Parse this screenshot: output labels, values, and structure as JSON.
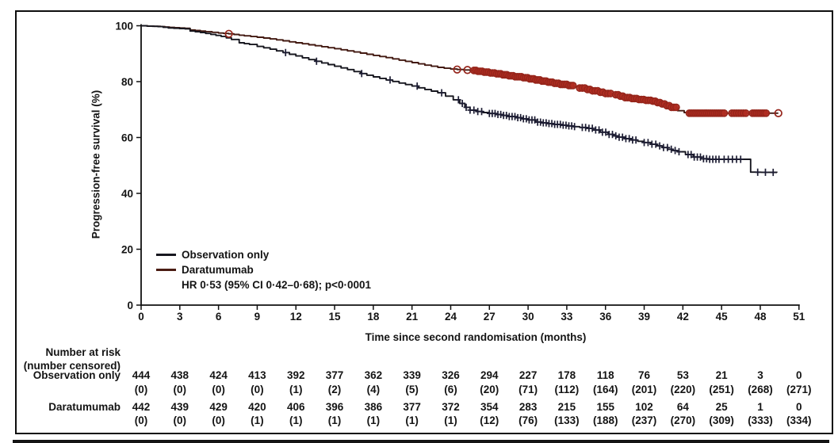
{
  "figure": {
    "background": "#ffffff",
    "border_color": "#0d0d0d",
    "text_color": "#141414"
  },
  "chart_data": {
    "type": "line",
    "subtype": "kaplan-meier-step",
    "title": "",
    "xlabel": "Time since second randomisation (months)",
    "ylabel": "Progression-free survival (%)",
    "xlim": [
      0,
      51
    ],
    "ylim": [
      0,
      100
    ],
    "x_ticks": [
      0,
      3,
      6,
      9,
      12,
      15,
      18,
      21,
      24,
      27,
      30,
      33,
      36,
      39,
      42,
      45,
      48,
      51
    ],
    "y_ticks": [
      0,
      20,
      40,
      60,
      80,
      100
    ],
    "grid": false,
    "legend": {
      "position": "lower-left-inside",
      "entries": [
        {
          "label": "Observation only",
          "color": "#17171f"
        },
        {
          "label": "Daratumumab",
          "color": "#4a1c13"
        }
      ],
      "annotation": "HR 0·53 (95% CI 0·42–0·68); p<0·0001"
    },
    "series": [
      {
        "name": "Daratumumab",
        "line_color": "#431a12",
        "marker": "circle",
        "marker_stroke": "#96251b",
        "marker_fill": "#b02c21",
        "points": [
          [
            0,
            100
          ],
          [
            1.5,
            99.7
          ],
          [
            2.2,
            99.4
          ],
          [
            3.4,
            99.1
          ],
          [
            3.8,
            98.5
          ],
          [
            5,
            97.9
          ],
          [
            6,
            97.4
          ],
          [
            6.8,
            97.1
          ],
          [
            8,
            96.4
          ],
          [
            9,
            95.9
          ],
          [
            10,
            95.3
          ],
          [
            11,
            94.6
          ],
          [
            12,
            93.9
          ],
          [
            13,
            93.2
          ],
          [
            14,
            92.5
          ],
          [
            15,
            91.8
          ],
          [
            16,
            91.0
          ],
          [
            17,
            90.2
          ],
          [
            18,
            89.4
          ],
          [
            19,
            88.6
          ],
          [
            20,
            87.7
          ],
          [
            21,
            86.8
          ],
          [
            22,
            85.9
          ],
          [
            23,
            85.1
          ],
          [
            24,
            84.5
          ],
          [
            25.5,
            84.0
          ],
          [
            26.5,
            83.4
          ],
          [
            27.5,
            82.8
          ],
          [
            28.5,
            82.1
          ],
          [
            29.5,
            81.4
          ],
          [
            30.5,
            80.6
          ],
          [
            31.5,
            79.8
          ],
          [
            32.5,
            79.0
          ],
          [
            33.5,
            78.2
          ],
          [
            34.5,
            77.2
          ],
          [
            35.5,
            76.2
          ],
          [
            36.5,
            75.3
          ],
          [
            37.5,
            74.3
          ],
          [
            38.5,
            73.6
          ],
          [
            39.5,
            73.0
          ],
          [
            40.3,
            72.0
          ],
          [
            41.0,
            70.8
          ],
          [
            41.6,
            69.6
          ],
          [
            42.1,
            68.9
          ],
          [
            42.4,
            68.7
          ],
          [
            49.4,
            68.7
          ]
        ],
        "censor_singles": [
          6.8,
          24.5,
          25.3,
          49.4
        ],
        "censor_clusters": [
          [
            25.8,
            33.6,
            0.16
          ],
          [
            34.0,
            36.4,
            0.2
          ],
          [
            36.8,
            41.6,
            0.18
          ],
          [
            42.5,
            45.2,
            0.15
          ],
          [
            45.8,
            47.0,
            0.18
          ],
          [
            47.4,
            48.5,
            0.15
          ]
        ]
      },
      {
        "name": "Observation only",
        "line_color": "#17171f",
        "marker": "plus",
        "marker_stroke": "#1d1d33",
        "points": [
          [
            0,
            100
          ],
          [
            1.3,
            99.7
          ],
          [
            2.1,
            99.2
          ],
          [
            3.4,
            98.9
          ],
          [
            3.8,
            98.1
          ],
          [
            4.6,
            97.6
          ],
          [
            5.4,
            96.9
          ],
          [
            6.2,
            96.2
          ],
          [
            7,
            95.1
          ],
          [
            7.6,
            93.9
          ],
          [
            8.4,
            93.3
          ],
          [
            9,
            92.6
          ],
          [
            10,
            91.6
          ],
          [
            11,
            90.4
          ],
          [
            12,
            89.2
          ],
          [
            13,
            87.9
          ],
          [
            14,
            86.7
          ],
          [
            15,
            85.5
          ],
          [
            16,
            84.3
          ],
          [
            17,
            82.9
          ],
          [
            18,
            81.7
          ],
          [
            19,
            80.6
          ],
          [
            20,
            79.5
          ],
          [
            21,
            78.4
          ],
          [
            22,
            77.2
          ],
          [
            23,
            76.0
          ],
          [
            23.6,
            74.8
          ],
          [
            24.2,
            73.5
          ],
          [
            24.7,
            72.2
          ],
          [
            25.1,
            70.8
          ],
          [
            25.5,
            69.8
          ],
          [
            26,
            69.3
          ],
          [
            27,
            68.6
          ],
          [
            28,
            67.9
          ],
          [
            29,
            67.1
          ],
          [
            30,
            66.3
          ],
          [
            30.6,
            65.5
          ],
          [
            31.5,
            65.0
          ],
          [
            32.5,
            64.4
          ],
          [
            33.5,
            63.9
          ],
          [
            34.5,
            63.3
          ],
          [
            35,
            62.7
          ],
          [
            35.6,
            61.9
          ],
          [
            36.2,
            61.1
          ],
          [
            37,
            60.1
          ],
          [
            38,
            59.1
          ],
          [
            39,
            58.2
          ],
          [
            40,
            57.0
          ],
          [
            40.8,
            55.8
          ],
          [
            41.6,
            54.9
          ],
          [
            42.2,
            53.9
          ],
          [
            42.8,
            53.0
          ],
          [
            43.4,
            52.4
          ],
          [
            44,
            52.2
          ],
          [
            47.1,
            52.2
          ],
          [
            47.25,
            47.6
          ],
          [
            49.3,
            47.5
          ]
        ],
        "censor_singles": [
          11.2,
          13.6,
          17.1,
          19.3,
          21.4,
          23.3,
          47.8,
          48.4,
          49.0
        ],
        "censor_clusters": [
          [
            24.6,
            26.4,
            0.3
          ],
          [
            27.0,
            33.8,
            0.22
          ],
          [
            34.2,
            38.6,
            0.26
          ],
          [
            39.0,
            41.8,
            0.3
          ],
          [
            42.4,
            44.8,
            0.24
          ],
          [
            45.2,
            46.6,
            0.32
          ]
        ]
      }
    ]
  },
  "risk_table": {
    "header_line1": "Number at risk",
    "header_line2": "(number censored)",
    "months": [
      0,
      3,
      6,
      9,
      12,
      15,
      18,
      21,
      24,
      27,
      30,
      33,
      36,
      39,
      42,
      45,
      48,
      51
    ],
    "rows": [
      {
        "label": "Observation only",
        "at_risk": [
          444,
          438,
          424,
          413,
          392,
          377,
          362,
          339,
          326,
          294,
          227,
          178,
          118,
          76,
          53,
          21,
          3,
          0
        ],
        "censored": [
          0,
          0,
          0,
          0,
          1,
          2,
          4,
          5,
          6,
          20,
          71,
          112,
          164,
          201,
          220,
          251,
          268,
          271
        ]
      },
      {
        "label": "Daratumumab",
        "at_risk": [
          442,
          439,
          429,
          420,
          406,
          396,
          386,
          377,
          372,
          354,
          283,
          215,
          155,
          102,
          64,
          25,
          1,
          0
        ],
        "censored": [
          0,
          0,
          0,
          1,
          1,
          1,
          1,
          1,
          1,
          12,
          76,
          133,
          188,
          237,
          270,
          309,
          333,
          334
        ]
      }
    ]
  }
}
